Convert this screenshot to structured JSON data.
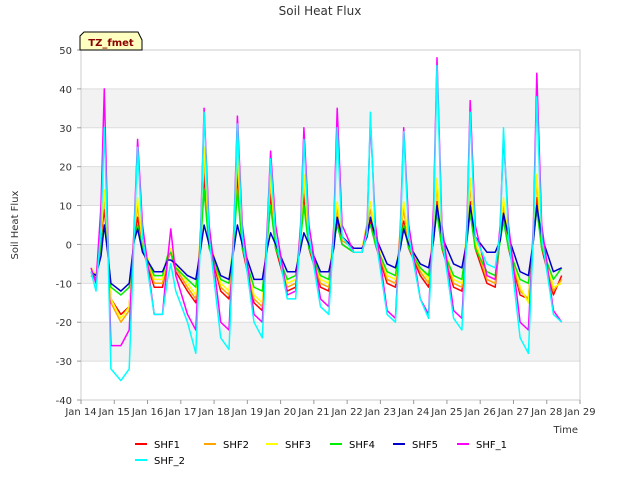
{
  "chart_data": {
    "type": "line",
    "title": "Soil Heat Flux",
    "xlabel": "Time",
    "ylabel": "Soil Heat Flux",
    "site_tag": "TZ_fmet",
    "ylim": [
      -40,
      50
    ],
    "xlim": [
      14,
      29
    ],
    "yticks": [
      -40,
      -30,
      -20,
      -10,
      0,
      10,
      20,
      30,
      40,
      50
    ],
    "xticks": [
      14,
      15,
      16,
      17,
      18,
      19,
      20,
      21,
      22,
      23,
      24,
      25,
      26,
      27,
      28,
      29
    ],
    "xtick_labels": [
      "Jan 14",
      "Jan 15",
      "Jan 16",
      "Jan 17",
      "Jan 18",
      "Jan 19",
      "Jan 20",
      "Jan 21",
      "Jan 22",
      "Jan 23",
      "Jan 24",
      "Jan 25",
      "Jan 26",
      "Jan 27",
      "Jan 28",
      "Jan 29"
    ],
    "grid": true,
    "legend_position": "bottom",
    "x": [
      14.3,
      14.45,
      14.6,
      14.7,
      14.8,
      14.9,
      15.2,
      15.45,
      15.6,
      15.7,
      15.85,
      16.2,
      16.45,
      16.6,
      16.7,
      16.85,
      17.2,
      17.45,
      17.6,
      17.7,
      17.85,
      18.2,
      18.45,
      18.6,
      18.7,
      18.85,
      19.2,
      19.45,
      19.6,
      19.7,
      19.85,
      20.2,
      20.45,
      20.6,
      20.7,
      20.85,
      21.2,
      21.45,
      21.6,
      21.7,
      21.85,
      22.2,
      22.45,
      22.6,
      22.7,
      22.85,
      23.2,
      23.45,
      23.6,
      23.7,
      23.85,
      24.2,
      24.45,
      24.6,
      24.7,
      24.85,
      25.2,
      25.45,
      25.6,
      25.7,
      25.85,
      26.2,
      26.45,
      26.6,
      26.7,
      26.85,
      27.2,
      27.45,
      27.6,
      27.7,
      27.85,
      28.2,
      28.45
    ],
    "series": [
      {
        "name": "SHF1",
        "color": "#ff0000",
        "values": [
          -7,
          -9,
          2,
          9,
          0,
          -14,
          -18,
          -16,
          2,
          7,
          -1,
          -11,
          -11,
          -4,
          -2,
          -7,
          -12,
          -15,
          2,
          18,
          0,
          -12,
          -14,
          2,
          18,
          -1,
          -15,
          -17,
          2,
          13,
          -1,
          -12,
          -11,
          2,
          13,
          -1,
          -11,
          -12,
          2,
          6,
          0,
          -2,
          -2,
          4,
          6,
          0,
          -10,
          -11,
          2,
          6,
          -1,
          -8,
          -11,
          3,
          11,
          -1,
          -11,
          -12,
          2,
          11,
          -1,
          -10,
          -11,
          2,
          7,
          -1,
          -13,
          -14,
          2,
          12,
          -1,
          -13,
          -8
        ]
      },
      {
        "name": "SHF2",
        "color": "#ffa500",
        "values": [
          -6,
          -8,
          3,
          12,
          1,
          -15,
          -20,
          -17,
          3,
          10,
          0,
          -10,
          -10,
          -4,
          -2,
          -6,
          -11,
          -14,
          3,
          22,
          1,
          -11,
          -13,
          3,
          22,
          0,
          -14,
          -16,
          3,
          16,
          0,
          -11,
          -10,
          3,
          16,
          0,
          -10,
          -11,
          3,
          9,
          1,
          -1,
          -1,
          5,
          9,
          1,
          -9,
          -10,
          3,
          9,
          0,
          -7,
          -10,
          4,
          15,
          0,
          -10,
          -11,
          3,
          15,
          0,
          -9,
          -10,
          3,
          10,
          0,
          -12,
          -14,
          3,
          16,
          0,
          -12,
          -9
        ]
      },
      {
        "name": "SHF3",
        "color": "#ffff00",
        "values": [
          -6,
          -8,
          3,
          14,
          2,
          -14,
          -19,
          -16,
          4,
          12,
          1,
          -9,
          -9,
          -3,
          -1,
          -5,
          -10,
          -13,
          4,
          25,
          2,
          -10,
          -12,
          4,
          25,
          1,
          -13,
          -15,
          4,
          18,
          1,
          -10,
          -9,
          4,
          18,
          1,
          -9,
          -10,
          4,
          11,
          2,
          -1,
          -1,
          6,
          11,
          2,
          -8,
          -9,
          4,
          11,
          1,
          -6,
          -9,
          5,
          17,
          1,
          -9,
          -10,
          4,
          17,
          1,
          -8,
          -9,
          4,
          12,
          1,
          -11,
          -15,
          4,
          18,
          1,
          -11,
          -10
        ]
      },
      {
        "name": "SHF4",
        "color": "#00ee00",
        "values": [
          -8,
          -9,
          0,
          5,
          -1,
          -11,
          -13,
          -11,
          1,
          5,
          -1,
          -8,
          -8,
          -3,
          -2,
          -6,
          -9,
          -11,
          1,
          14,
          -1,
          -9,
          -10,
          1,
          14,
          -1,
          -11,
          -12,
          1,
          10,
          -1,
          -9,
          -8,
          1,
          10,
          -1,
          -8,
          -9,
          1,
          5,
          0,
          -2,
          -2,
          3,
          5,
          0,
          -7,
          -8,
          1,
          5,
          -1,
          -6,
          -8,
          2,
          8,
          -1,
          -8,
          -9,
          1,
          8,
          -1,
          -7,
          -8,
          1,
          6,
          -1,
          -9,
          -10,
          1,
          9,
          -1,
          -9,
          -6
        ]
      },
      {
        "name": "SHF5",
        "color": "#0000cc",
        "values": [
          -7,
          -8,
          -3,
          5,
          -2,
          -10,
          -12,
          -10,
          1,
          4,
          -2,
          -7,
          -7,
          -4,
          -4,
          -5,
          -8,
          -9,
          -1,
          5,
          0,
          -8,
          -9,
          -1,
          5,
          0,
          -9,
          -9,
          -1,
          3,
          0,
          -7,
          -7,
          -1,
          3,
          0,
          -7,
          -7,
          -1,
          7,
          2,
          -1,
          -1,
          2,
          7,
          2,
          -5,
          -6,
          -1,
          4,
          0,
          -5,
          -6,
          1,
          10,
          2,
          -5,
          -6,
          1,
          10,
          2,
          -2,
          -2,
          1,
          8,
          2,
          -7,
          -8,
          1,
          10,
          2,
          -7,
          -6
        ]
      },
      {
        "name": "SHF_1",
        "color": "#ff00ff",
        "values": [
          -6,
          -10,
          10,
          40,
          5,
          -26,
          -26,
          -22,
          5,
          27,
          5,
          -18,
          -18,
          -4,
          4,
          -8,
          -18,
          -22,
          5,
          35,
          5,
          -20,
          -22,
          5,
          33,
          5,
          -18,
          -20,
          5,
          24,
          5,
          -13,
          -12,
          5,
          30,
          5,
          -14,
          -16,
          5,
          35,
          5,
          -2,
          -2,
          5,
          32,
          5,
          -17,
          -19,
          5,
          30,
          5,
          -14,
          -18,
          10,
          48,
          5,
          -17,
          -19,
          5,
          37,
          5,
          -8,
          -9,
          5,
          28,
          5,
          -20,
          -22,
          5,
          44,
          5,
          -17,
          -20
        ]
      },
      {
        "name": "SHF_2",
        "color": "#00ffff",
        "values": [
          -7,
          -12,
          4,
          30,
          2,
          -32,
          -35,
          -32,
          3,
          25,
          2,
          -18,
          -18,
          -9,
          -5,
          -12,
          -20,
          -28,
          3,
          34,
          2,
          -24,
          -27,
          3,
          31,
          2,
          -20,
          -24,
          3,
          22,
          2,
          -14,
          -14,
          3,
          27,
          2,
          -16,
          -18,
          3,
          30,
          2,
          -2,
          -2,
          3,
          34,
          2,
          -18,
          -20,
          3,
          29,
          2,
          -14,
          -19,
          6,
          46,
          2,
          -19,
          -22,
          3,
          34,
          2,
          -5,
          -6,
          3,
          30,
          2,
          -24,
          -28,
          3,
          38,
          2,
          -18,
          -20
        ]
      }
    ]
  }
}
